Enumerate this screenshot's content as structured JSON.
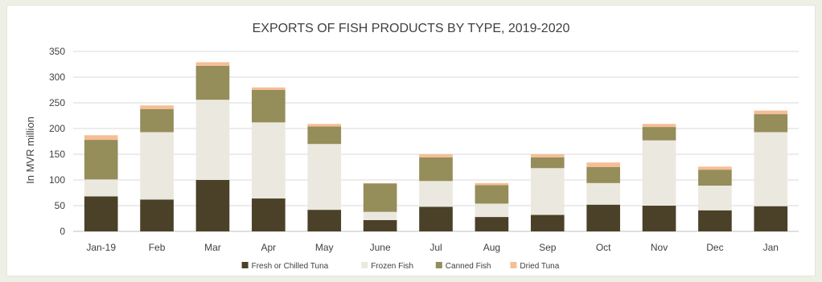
{
  "chart_data": {
    "type": "bar",
    "stacked": true,
    "title": "EXPORTS OF FISH PRODUCTS BY TYPE, 2019-2020",
    "ylabel": "In MVR million",
    "xlabel": "",
    "ylim": [
      0,
      350
    ],
    "yticks": [
      0,
      50,
      100,
      150,
      200,
      250,
      300,
      350
    ],
    "grid": true,
    "legend_position": "bottom",
    "categories": [
      "Jan-19",
      "Feb",
      "Mar",
      "Apr",
      "May",
      "June",
      "Jul",
      "Aug",
      "Sep",
      "Oct",
      "Nov",
      "Dec",
      "Jan"
    ],
    "series": [
      {
        "name": "Fresh or Chilled Tuna",
        "color": "#4a4128",
        "values": [
          68,
          62,
          100,
          64,
          42,
          22,
          48,
          28,
          32,
          52,
          50,
          41,
          49
        ]
      },
      {
        "name": "Frozen Fish",
        "color": "#ebe8df",
        "values": [
          33,
          131,
          156,
          148,
          128,
          16,
          50,
          26,
          91,
          42,
          127,
          48,
          144
        ]
      },
      {
        "name": "Canned Fish",
        "color": "#958d5a",
        "values": [
          77,
          45,
          66,
          63,
          34,
          55,
          46,
          36,
          21,
          31,
          26,
          31,
          35
        ]
      },
      {
        "name": "Dried Tuna",
        "color": "#f6be94",
        "values": [
          9,
          7,
          7,
          5,
          5,
          1,
          6,
          4,
          6,
          9,
          6,
          6,
          7
        ]
      }
    ]
  }
}
